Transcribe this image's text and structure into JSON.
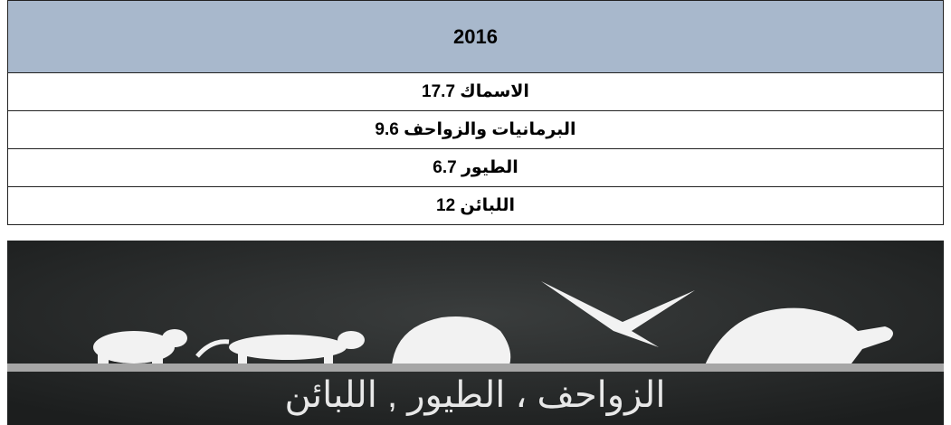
{
  "table": {
    "header": "2016",
    "rows": [
      "الاسماك 17.7",
      "البرمانيات والزواحف 9.6",
      "الطيور 6.7",
      "اللبائن 12"
    ]
  },
  "image": {
    "caption": "الزواحف ، الطيور , اللبائن"
  }
}
